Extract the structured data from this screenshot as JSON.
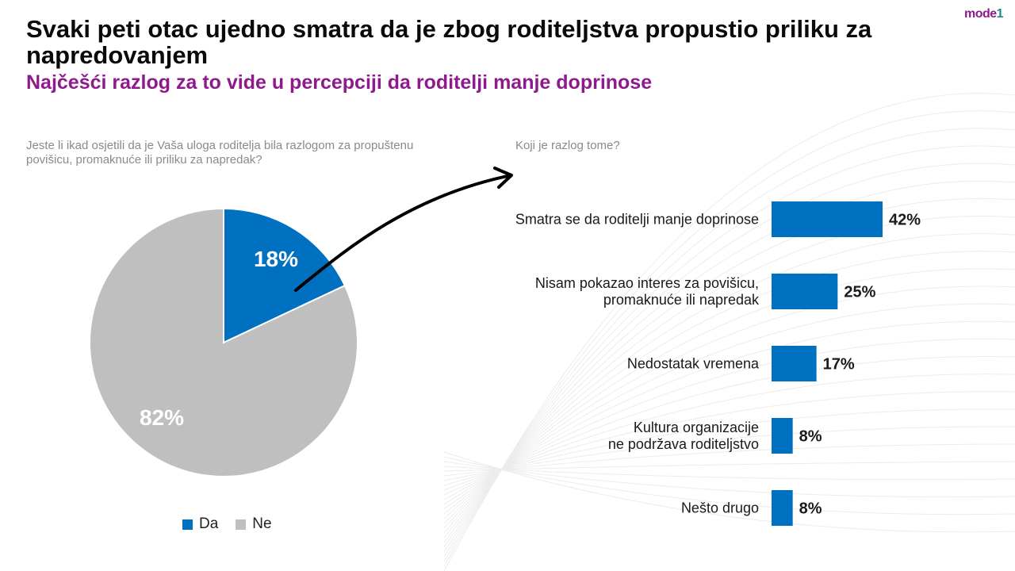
{
  "title": "Svaki peti otac ujedno smatra da je zbog roditeljstva propustio priliku za napredovanjem",
  "subtitle": "Najčešći razlog za to vide u percepciji da roditelji manje doprinose",
  "logo": {
    "part1": "mode",
    "part2": "1"
  },
  "colors": {
    "accent": "#0070c0",
    "gray": "#bfbfbf",
    "subtitle": "#8e1a8c"
  },
  "chart_data": [
    {
      "type": "pie",
      "title": "Jeste li ikad osjetili da je Vaša uloga roditelja bila razlogom za propuštenu povišicu, promaknuće ili priliku za napredak?",
      "categories": [
        "Da",
        "Ne"
      ],
      "values": [
        18,
        82
      ],
      "labels": [
        "18%",
        "82%"
      ],
      "colors": [
        "#0070c0",
        "#bfbfbf"
      ],
      "legend": "bottom"
    },
    {
      "type": "bar",
      "orientation": "horizontal",
      "title": "Koji je razlog tome?",
      "categories": [
        [
          "Smatra se da roditelji manje doprinose"
        ],
        [
          "Nisam pokazao interes za povišicu,",
          "promaknuće ili napredak"
        ],
        [
          "Nedostatak vremena"
        ],
        [
          "Kultura organizacije",
          "ne podržava roditeljstvo"
        ],
        [
          "Nešto drugo"
        ]
      ],
      "values": [
        42,
        25,
        17,
        8,
        8
      ],
      "labels": [
        "42%",
        "25%",
        "17%",
        "8%",
        "8%"
      ],
      "color": "#0070c0",
      "xlim": [
        0,
        42
      ]
    }
  ]
}
